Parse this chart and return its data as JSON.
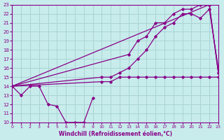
{
  "xlabel": "Windchill (Refroidissement éolien,°C)",
  "background_color": "#c8ecec",
  "grid_color": "#aad4d4",
  "line_color": "#880088",
  "xlim": [
    0,
    23
  ],
  "ylim": [
    10,
    23
  ],
  "xticks": [
    0,
    1,
    2,
    3,
    4,
    5,
    6,
    7,
    8,
    9,
    10,
    11,
    12,
    13,
    14,
    15,
    16,
    17,
    18,
    19,
    20,
    21,
    22,
    23
  ],
  "yticks": [
    10,
    11,
    12,
    13,
    14,
    15,
    16,
    17,
    18,
    19,
    20,
    21,
    22,
    23
  ],
  "series1_x": [
    0,
    1,
    2,
    3,
    4,
    5,
    6,
    7,
    8,
    9
  ],
  "series1_y": [
    14,
    13,
    14,
    14,
    12,
    11.8,
    10,
    10,
    10,
    12.7
  ],
  "series2_x": [
    0,
    22,
    23
  ],
  "series2_y": [
    14,
    23,
    15.5
  ],
  "series3_x": [
    0,
    13,
    14,
    15,
    16,
    17,
    18,
    19,
    20,
    21,
    22,
    23
  ],
  "series3_y": [
    14,
    17.5,
    19,
    19.5,
    21,
    21,
    22,
    22.5,
    22.5,
    23,
    23,
    15.5
  ],
  "series4_x": [
    0,
    10,
    11,
    12,
    13,
    14,
    15,
    16,
    17,
    18,
    19,
    20,
    21,
    22,
    23
  ],
  "series4_y": [
    14,
    15,
    15,
    15.5,
    16,
    17,
    18,
    19.5,
    20.5,
    21,
    22,
    22,
    21.5,
    22.5,
    16
  ],
  "series5_x": [
    0,
    10,
    11,
    12,
    13,
    14,
    15,
    16,
    17,
    18,
    19,
    20,
    21,
    22,
    23
  ],
  "series5_y": [
    14,
    14.5,
    14.5,
    15,
    15,
    15,
    15,
    15,
    15,
    15,
    15,
    15,
    15,
    15,
    15
  ]
}
